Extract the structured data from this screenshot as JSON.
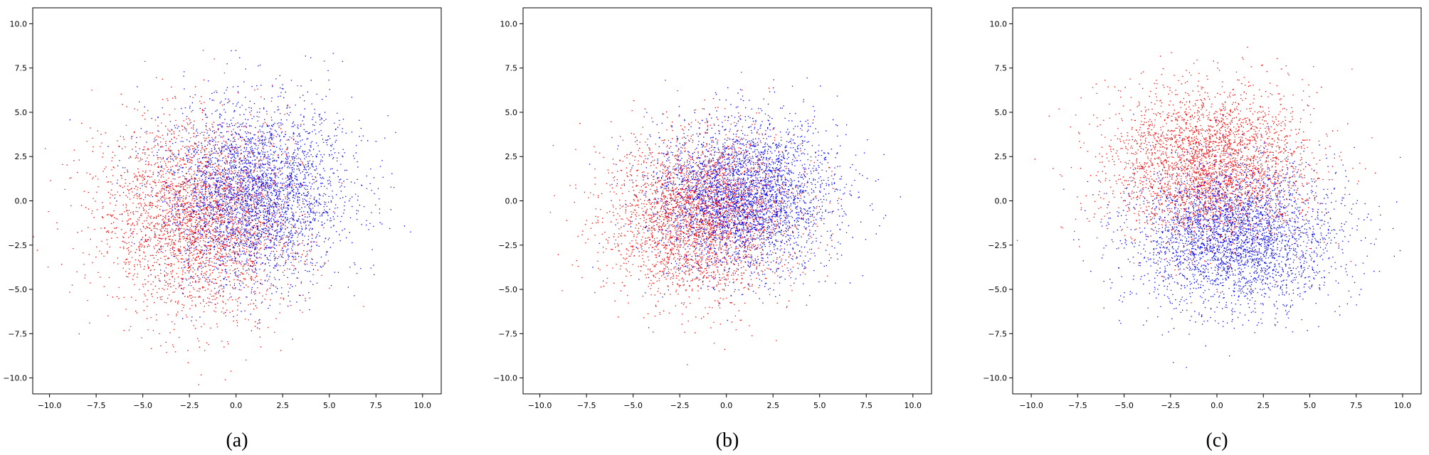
{
  "chart_data": [
    {
      "type": "scatter",
      "caption": "(a)",
      "xlim": [
        -10.9,
        11.0
      ],
      "ylim": [
        -10.9,
        10.9
      ],
      "xticks": [
        -10.0,
        -7.5,
        -5.0,
        -2.5,
        0.0,
        2.5,
        5.0,
        7.5,
        10.0
      ],
      "yticks": [
        -10.0,
        -7.5,
        -5.0,
        -2.5,
        0.0,
        2.5,
        5.0,
        7.5,
        10.0
      ],
      "xtick_labels": [
        "−10.0",
        "−7.5",
        "−5.0",
        "−2.5",
        "0.0",
        "2.5",
        "5.0",
        "7.5",
        "10.0"
      ],
      "ytick_labels": [
        "−10.0",
        "−7.5",
        "−5.0",
        "−2.5",
        "0.0",
        "2.5",
        "5.0",
        "7.5",
        "10.0"
      ],
      "grid": false,
      "series": [
        {
          "color": "#ff0000",
          "point_count": 3200,
          "center": [
            -2.0,
            -1.0
          ],
          "spread": [
            2.6,
            2.8
          ]
        },
        {
          "color": "#0000ff",
          "point_count": 3400,
          "center": [
            1.0,
            0.5
          ],
          "spread": [
            2.4,
            2.5
          ]
        }
      ]
    },
    {
      "type": "scatter",
      "caption": "(b)",
      "xlim": [
        -10.9,
        11.0
      ],
      "ylim": [
        -10.9,
        10.9
      ],
      "xticks": [
        -10.0,
        -7.5,
        -5.0,
        -2.5,
        0.0,
        2.5,
        5.0,
        7.5,
        10.0
      ],
      "yticks": [
        -10.0,
        -7.5,
        -5.0,
        -2.5,
        0.0,
        2.5,
        5.0,
        7.5,
        10.0
      ],
      "xtick_labels": [
        "−10.0",
        "−7.5",
        "−5.0",
        "−2.5",
        "0.0",
        "2.5",
        "5.0",
        "7.5",
        "10.0"
      ],
      "ytick_labels": [
        "−10.0",
        "−7.5",
        "−5.0",
        "−2.5",
        "0.0",
        "2.5",
        "5.0",
        "7.5",
        "10.0"
      ],
      "grid": false,
      "series": [
        {
          "color": "#ff0000",
          "point_count": 3200,
          "center": [
            -1.5,
            -0.8
          ],
          "spread": [
            2.4,
            2.3
          ]
        },
        {
          "color": "#0000ff",
          "point_count": 3400,
          "center": [
            1.0,
            0.3
          ],
          "spread": [
            2.4,
            2.1
          ]
        }
      ]
    },
    {
      "type": "scatter",
      "caption": "(c)",
      "xlim": [
        -11.0,
        11.0
      ],
      "ylim": [
        -10.9,
        10.9
      ],
      "xticks": [
        -10.0,
        -7.5,
        -5.0,
        -2.5,
        0.0,
        2.5,
        5.0,
        7.5,
        10.0
      ],
      "yticks": [
        -10.0,
        -7.5,
        -5.0,
        -2.5,
        0.0,
        2.5,
        5.0,
        7.5,
        10.0
      ],
      "xtick_labels": [
        "−10.0",
        "−7.5",
        "−5.0",
        "−2.5",
        "0.0",
        "2.5",
        "5.0",
        "7.5",
        "10.0"
      ],
      "ytick_labels": [
        "−10.0",
        "−7.5",
        "−5.0",
        "−2.5",
        "0.0",
        "2.5",
        "5.0",
        "7.5",
        "10.0"
      ],
      "grid": false,
      "series": [
        {
          "color": "#ff0000",
          "point_count": 3300,
          "center": [
            -0.5,
            2.0
          ],
          "spread": [
            2.7,
            2.2
          ]
        },
        {
          "color": "#0000ff",
          "point_count": 3300,
          "center": [
            1.0,
            -2.0
          ],
          "spread": [
            2.7,
            2.0
          ]
        }
      ]
    }
  ]
}
